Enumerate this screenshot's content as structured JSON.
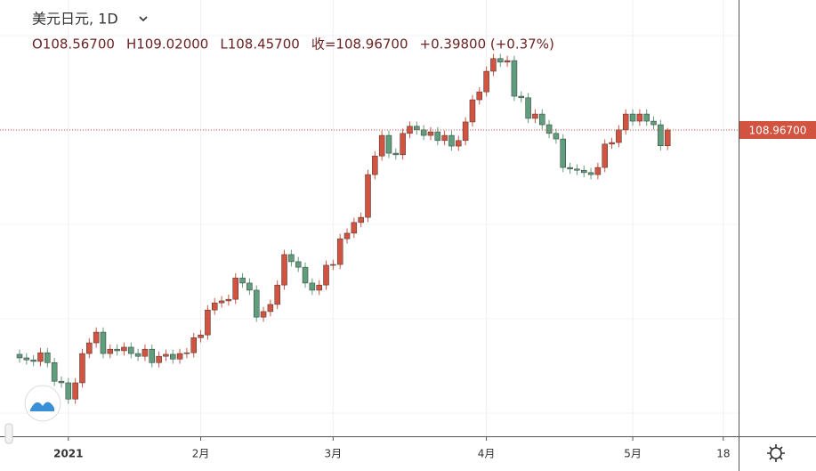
{
  "chart_data": {
    "type": "candlestick",
    "title": "美元日元, 1D",
    "legend_texts": [
      "O108.56700",
      "H109.02000",
      "L108.45700",
      "收=108.96700",
      "+0.39800 (+0.37%)"
    ],
    "last_price": {
      "value": 108.967,
      "label": "108.96700"
    },
    "up_color": "#d2533f",
    "down_color": "#5f9e7c",
    "ylim": [
      101.23,
      112.25
    ],
    "categories": [
      null,
      null,
      null,
      null,
      null,
      null,
      null,
      "2021",
      null,
      null,
      null,
      null,
      null,
      null,
      null,
      null,
      null,
      null,
      null,
      null,
      null,
      null,
      null,
      null,
      null,
      null,
      "2月",
      null,
      null,
      null,
      null,
      null,
      null,
      null,
      null,
      null,
      null,
      null,
      null,
      null,
      null,
      null,
      null,
      null,
      null,
      "3月",
      null,
      null,
      null,
      null,
      null,
      null,
      null,
      null,
      null,
      null,
      null,
      null,
      null,
      null,
      null,
      null,
      null,
      null,
      null,
      null,
      null,
      "4月",
      null,
      null,
      null,
      null,
      null,
      null,
      null,
      null,
      null,
      null,
      null,
      null,
      null,
      null,
      null,
      null,
      null,
      null,
      null,
      null,
      "5月",
      null,
      null,
      null,
      null,
      null,
      null,
      null,
      null,
      null,
      null,
      null,
      null,
      "18"
    ],
    "open": [
      103.3,
      103.21,
      103.16,
      103.12,
      103.34,
      103.09,
      102.62,
      102.58,
      102.17,
      102.58,
      103.32,
      103.59,
      103.86,
      103.32,
      103.43,
      103.39,
      103.48,
      103.32,
      103.25,
      103.43,
      103.09,
      103.25,
      103.3,
      103.18,
      103.32,
      103.34,
      103.72,
      103.79,
      104.42,
      104.6,
      104.65,
      104.69,
      105.23,
      105.1,
      104.92,
      104.24,
      104.38,
      104.56,
      105.05,
      105.82,
      105.64,
      105.5,
      105.1,
      104.92,
      105.05,
      105.55,
      105.57,
      106.22,
      106.36,
      106.63,
      106.76,
      107.84,
      108.31,
      108.83,
      108.38,
      108.34,
      108.88,
      109.06,
      108.97,
      108.83,
      108.92,
      108.7,
      108.83,
      108.56,
      108.7,
      109.17,
      109.73,
      109.93,
      110.45,
      110.77,
      110.68,
      110.72,
      109.82,
      109.78,
      109.26,
      109.37,
      109.1,
      108.88,
      108.74,
      108.02,
      107.98,
      107.95,
      107.89,
      107.84,
      108.02,
      108.61,
      108.65,
      108.97,
      109.37,
      109.19,
      109.37,
      109.19,
      109.1,
      108.567,
      null,
      null,
      null,
      null,
      null,
      null,
      null,
      null
    ],
    "high": [
      103.42,
      103.33,
      103.28,
      103.46,
      103.46,
      103.21,
      102.74,
      102.7,
      102.7,
      103.44,
      103.71,
      103.98,
      103.98,
      103.55,
      103.55,
      103.6,
      103.6,
      103.44,
      103.55,
      103.55,
      103.37,
      103.42,
      103.42,
      103.44,
      103.46,
      103.84,
      103.91,
      104.54,
      104.72,
      104.77,
      104.81,
      105.35,
      105.35,
      105.22,
      105.04,
      104.5,
      104.68,
      105.17,
      105.94,
      105.94,
      105.76,
      105.62,
      105.22,
      105.17,
      105.67,
      105.69,
      106.34,
      106.48,
      106.75,
      106.88,
      107.96,
      108.43,
      108.95,
      108.95,
      108.5,
      109.0,
      109.18,
      109.18,
      109.09,
      109.04,
      109.04,
      108.95,
      108.95,
      108.82,
      109.29,
      109.85,
      110.05,
      110.57,
      110.89,
      110.89,
      110.84,
      110.84,
      109.94,
      109.9,
      109.49,
      109.49,
      109.22,
      109.0,
      108.86,
      108.14,
      108.1,
      108.07,
      108.01,
      108.14,
      108.73,
      108.77,
      109.09,
      109.49,
      109.49,
      109.49,
      109.49,
      109.31,
      109.22,
      109.02,
      null,
      null,
      null,
      null,
      null,
      null,
      null,
      null
    ],
    "low": [
      103.09,
      103.04,
      103.0,
      103.0,
      102.97,
      102.5,
      102.46,
      102.05,
      102.05,
      102.46,
      103.2,
      103.47,
      103.2,
      103.2,
      103.27,
      103.27,
      103.2,
      103.13,
      103.13,
      102.97,
      102.97,
      103.13,
      103.06,
      103.06,
      103.2,
      103.22,
      103.6,
      103.67,
      104.3,
      104.48,
      104.53,
      104.57,
      104.98,
      104.8,
      104.12,
      104.12,
      104.26,
      104.44,
      104.93,
      105.52,
      105.38,
      104.98,
      104.8,
      104.8,
      104.93,
      105.43,
      105.45,
      106.1,
      106.24,
      106.51,
      106.64,
      107.72,
      108.19,
      108.26,
      108.22,
      108.22,
      108.76,
      108.85,
      108.71,
      108.71,
      108.58,
      108.58,
      108.44,
      108.44,
      108.58,
      109.05,
      109.61,
      109.81,
      110.33,
      110.56,
      110.56,
      109.7,
      109.66,
      109.14,
      109.14,
      108.98,
      108.76,
      108.62,
      107.9,
      107.86,
      107.83,
      107.77,
      107.72,
      107.72,
      107.9,
      108.49,
      108.53,
      108.85,
      109.07,
      109.07,
      109.07,
      108.98,
      108.45,
      108.457,
      null,
      null,
      null,
      null,
      null,
      null,
      null,
      null
    ],
    "close": [
      103.21,
      103.16,
      103.12,
      103.34,
      103.09,
      102.62,
      102.58,
      102.17,
      102.58,
      103.32,
      103.59,
      103.86,
      103.32,
      103.43,
      103.39,
      103.48,
      103.32,
      103.25,
      103.43,
      103.09,
      103.25,
      103.3,
      103.18,
      103.32,
      103.34,
      103.72,
      103.79,
      104.42,
      104.6,
      104.65,
      104.69,
      105.23,
      105.1,
      104.92,
      104.24,
      104.38,
      104.56,
      105.05,
      105.82,
      105.64,
      105.5,
      105.1,
      104.92,
      105.05,
      105.55,
      105.57,
      106.22,
      106.36,
      106.63,
      106.76,
      107.84,
      108.31,
      108.83,
      108.38,
      108.34,
      108.88,
      109.06,
      108.97,
      108.83,
      108.92,
      108.7,
      108.83,
      108.56,
      108.7,
      109.17,
      109.73,
      109.93,
      110.45,
      110.77,
      110.68,
      110.72,
      109.82,
      109.78,
      109.26,
      109.37,
      109.1,
      108.88,
      108.74,
      108.02,
      107.98,
      107.95,
      107.89,
      107.84,
      108.02,
      108.61,
      108.65,
      108.97,
      109.37,
      109.19,
      109.37,
      109.19,
      109.1,
      108.567,
      108.967,
      null,
      null,
      null,
      null,
      null,
      null,
      null,
      null
    ]
  }
}
